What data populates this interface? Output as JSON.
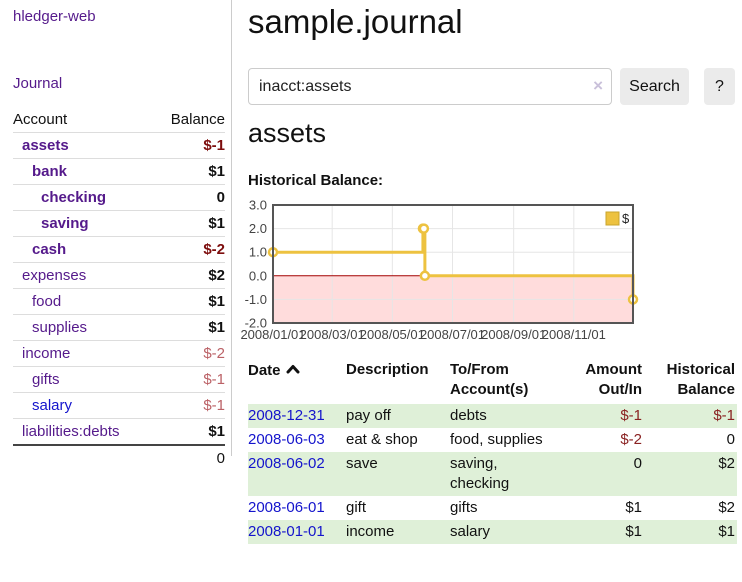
{
  "sidebar": {
    "brand": "hledger-web",
    "nav": {
      "journal": "Journal"
    },
    "table": {
      "headers": [
        "Account",
        "Balance"
      ]
    },
    "accounts": [
      {
        "name": "assets",
        "level": 1,
        "bold": true,
        "link_color": "purple",
        "balance": "$-1",
        "balance_style": "neg-strong"
      },
      {
        "name": "bank",
        "level": 2,
        "bold": true,
        "link_color": "purple",
        "balance": "$1",
        "balance_style": "pos"
      },
      {
        "name": "checking",
        "level": 3,
        "bold": true,
        "link_color": "purple",
        "balance": "0",
        "balance_style": "pos"
      },
      {
        "name": "saving",
        "level": 3,
        "bold": true,
        "link_color": "purple",
        "balance": "$1",
        "balance_style": "pos"
      },
      {
        "name": "cash",
        "level": 2,
        "bold": true,
        "link_color": "purple",
        "balance": "$-2",
        "balance_style": "neg-strong"
      },
      {
        "name": "expenses",
        "level": 1,
        "bold": false,
        "link_color": "purple",
        "balance": "$2",
        "balance_style": "pos"
      },
      {
        "name": "food",
        "level": 2,
        "bold": false,
        "link_color": "purple",
        "balance": "$1",
        "balance_style": "pos"
      },
      {
        "name": "supplies",
        "level": 2,
        "bold": false,
        "link_color": "purple",
        "balance": "$1",
        "balance_style": "pos"
      },
      {
        "name": "income",
        "level": 1,
        "bold": false,
        "link_color": "purple",
        "balance": "$-2",
        "balance_style": "neg-faded"
      },
      {
        "name": "gifts",
        "level": 2,
        "bold": false,
        "link_color": "purple",
        "balance": "$-1",
        "balance_style": "neg-faded"
      },
      {
        "name": "salary",
        "level": 2,
        "bold": false,
        "link_color": "blue",
        "balance": "$-1",
        "balance_style": "neg-faded"
      },
      {
        "name": "liabilities:debts",
        "level": 1,
        "bold": false,
        "link_color": "purple",
        "balance": "$1",
        "balance_style": "pos"
      }
    ],
    "total": "0"
  },
  "header": {
    "title": "sample.journal"
  },
  "search": {
    "value": "inacct:assets",
    "clear_icon": "×",
    "button": "Search",
    "help_button": "?"
  },
  "account_page": {
    "heading": "assets",
    "chart_label": "Historical Balance:"
  },
  "chart_data": {
    "type": "line",
    "line_style": "step",
    "title": "Historical Balance",
    "series": [
      {
        "name": "$",
        "x": [
          "2008-01-01",
          "2008-06-01",
          "2008-06-02",
          "2008-06-03",
          "2008-12-31"
        ],
        "y": [
          1,
          2,
          2,
          0,
          -1
        ]
      }
    ],
    "xlim": [
      "2008-01-01",
      "2008-12-31"
    ],
    "ylim": [
      -2,
      3
    ],
    "yticks": [
      3.0,
      2.0,
      1.0,
      0.0,
      -1.0,
      -2.0
    ],
    "ytick_labels": [
      "3.0",
      "2.0",
      "1.0",
      "0.0",
      "-1.0",
      "-2.0"
    ],
    "xticks": [
      "2008-01-01",
      "2008-03-01",
      "2008-05-01",
      "2008-07-01",
      "2008-09-01",
      "2008-11-01"
    ],
    "xtick_labels": [
      "2008/01/01",
      "2008/03/01",
      "2008/05/01",
      "2008/07/01",
      "2008/09/01",
      "2008/11/01"
    ],
    "grid": true,
    "legend": {
      "label": "$",
      "position": "top-right"
    },
    "colors": {
      "line": "#edc240",
      "marker_fill": "#ffffff",
      "negative_region": "#ffdcdc",
      "zero_line": "#a40000",
      "grid": "#e6e6e6",
      "border": "#555555",
      "tick_text": "#444444"
    }
  },
  "register": {
    "columns": [
      {
        "label": "Date",
        "sorted": "asc"
      },
      {
        "label": "Description"
      },
      {
        "label": "To/From Account(s)"
      },
      {
        "label": "Amount Out/In",
        "align": "right"
      },
      {
        "label": "Historical Balance",
        "align": "right"
      }
    ],
    "rows": [
      {
        "date": "2008-12-31",
        "description": "pay off",
        "accounts": "debts",
        "amount": "$-1",
        "amount_neg": true,
        "balance": "$-1",
        "balance_neg": true,
        "highlight": true
      },
      {
        "date": "2008-06-03",
        "description": "eat & shop",
        "accounts": "food, supplies",
        "amount": "$-2",
        "amount_neg": true,
        "balance": "0",
        "balance_neg": false,
        "highlight": false
      },
      {
        "date": "2008-06-02",
        "description": "save",
        "accounts": "saving, checking",
        "amount": "0",
        "amount_neg": false,
        "balance": "$2",
        "balance_neg": false,
        "highlight": true
      },
      {
        "date": "2008-06-01",
        "description": "gift",
        "accounts": "gifts",
        "amount": "$1",
        "amount_neg": false,
        "balance": "$2",
        "balance_neg": false,
        "highlight": false
      },
      {
        "date": "2008-01-01",
        "description": "income",
        "accounts": "salary",
        "amount": "$1",
        "amount_neg": false,
        "balance": "$1",
        "balance_neg": false,
        "highlight": true
      }
    ]
  },
  "colors": {
    "link_purple": "#551a8b",
    "link_blue": "#1414cc",
    "negative_strong": "#7d0d0d",
    "negative_table": "#8a2222",
    "negative_faded": "#bb6166",
    "row_highlight_green": "#dff0d8",
    "button_bg": "#ebebeb",
    "divider": "#cccccc"
  }
}
